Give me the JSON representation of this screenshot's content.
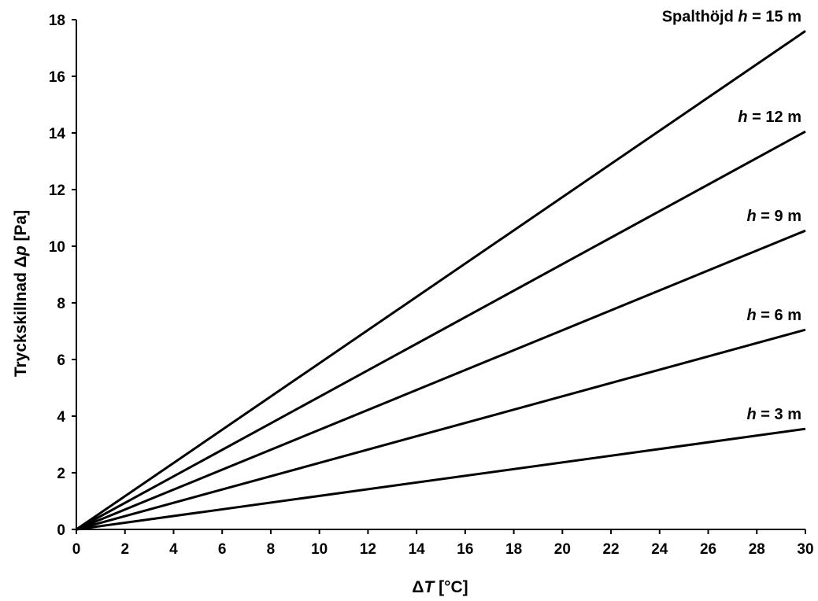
{
  "chart_data": {
    "type": "line",
    "xlabel": {
      "prefix": "Δ",
      "var": "T",
      "unit": " [°C]"
    },
    "ylabel": {
      "prefix": "Tryckskillnad Δ",
      "var": "p",
      "unit": " [Pa]"
    },
    "xlim": [
      0,
      30
    ],
    "ylim": [
      0,
      18
    ],
    "x_ticks": [
      "0",
      "2",
      "4",
      "6",
      "8",
      "10",
      "12",
      "14",
      "16",
      "18",
      "20",
      "22",
      "24",
      "26",
      "28",
      "30"
    ],
    "y_ticks": [
      "0",
      "2",
      "4",
      "6",
      "8",
      "10",
      "12",
      "14",
      "16",
      "18"
    ],
    "grid": false,
    "line_color": "#000000",
    "x": [
      0,
      30
    ],
    "series": [
      {
        "name": {
          "prefix": "Spalthöjd ",
          "var": "h",
          "suffix": " = 15 m"
        },
        "values": [
          0,
          17.6
        ]
      },
      {
        "name": {
          "prefix": "",
          "var": "h",
          "suffix": " = 12 m"
        },
        "values": [
          0,
          14.05
        ]
      },
      {
        "name": {
          "prefix": "",
          "var": "h",
          "suffix": " = 9 m"
        },
        "values": [
          0,
          10.55
        ]
      },
      {
        "name": {
          "prefix": "",
          "var": "h",
          "suffix": " = 6 m"
        },
        "values": [
          0,
          7.05
        ]
      },
      {
        "name": {
          "prefix": "",
          "var": "h",
          "suffix": " = 3 m"
        },
        "values": [
          0,
          3.55
        ]
      }
    ]
  }
}
